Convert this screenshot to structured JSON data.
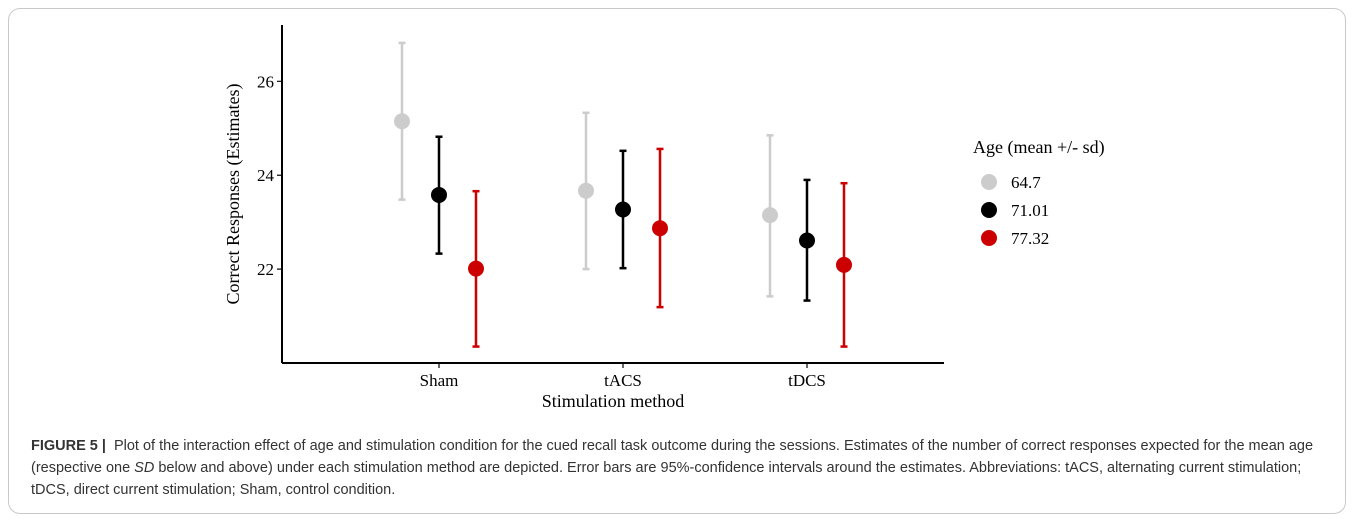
{
  "chart_data": {
    "type": "scatter",
    "xlabel": "Stimulation method",
    "ylabel": "Correct Responses (Estimates)",
    "categories": [
      "Sham",
      "tACS",
      "tDCS"
    ],
    "yticks": [
      22,
      24,
      26
    ],
    "ylim": [
      20,
      27.2
    ],
    "grid": false,
    "legend": {
      "title": "Age (mean +/- sd)",
      "position": "right"
    },
    "series": [
      {
        "name": "64.7",
        "color": "#cccccc",
        "values": [
          25.15,
          23.67,
          23.15
        ],
        "ci_low": [
          23.48,
          22.0,
          21.42
        ],
        "ci_high": [
          26.82,
          25.33,
          24.85
        ]
      },
      {
        "name": "71.01",
        "color": "#000000",
        "values": [
          23.58,
          23.27,
          22.61
        ],
        "ci_low": [
          22.33,
          22.02,
          21.33
        ],
        "ci_high": [
          24.82,
          24.52,
          23.9
        ]
      },
      {
        "name": "77.32",
        "color": "#cc0000",
        "values": [
          22.01,
          22.87,
          22.09
        ],
        "ci_low": [
          20.35,
          21.19,
          20.35
        ],
        "ci_high": [
          23.66,
          24.56,
          23.83
        ]
      }
    ]
  },
  "caption": {
    "label": "FIGURE 5",
    "separator": "|",
    "text_1": "Plot of the interaction effect of age and stimulation condition for the cued recall task outcome during the sessions. Estimates of the number of correct responses expected for the mean age (respective one ",
    "sd": "SD",
    "text_2": " below and above) under each stimulation method are depicted. Error bars are 95%-confidence intervals around the estimates. Abbreviations: tACS, alternating current stimulation; tDCS, direct current stimulation; Sham, control condition."
  }
}
